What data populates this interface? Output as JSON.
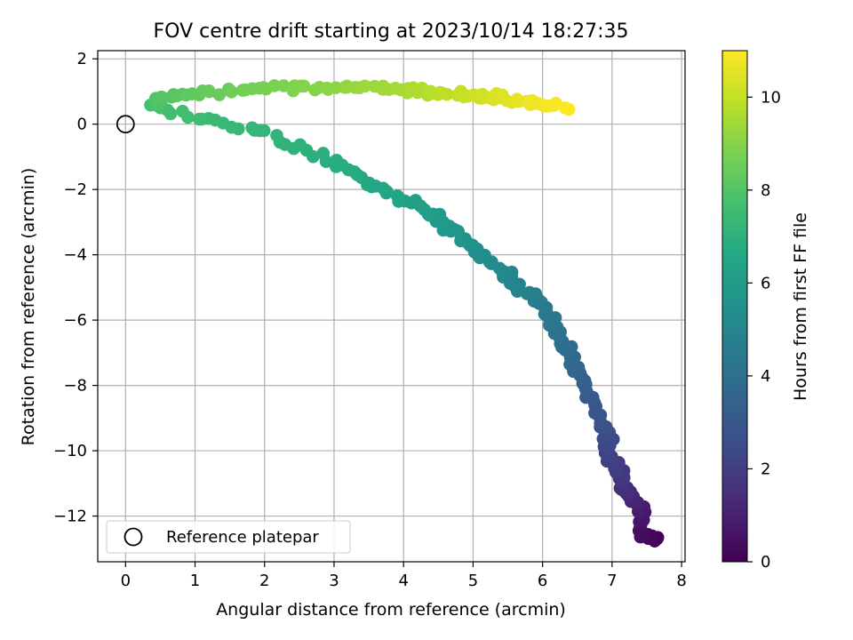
{
  "chart_data": {
    "type": "scatter",
    "title": "FOV centre drift starting at 2023/10/14 18:27:35",
    "xlabel": "Angular distance from reference (arcmin)",
    "ylabel": "Rotation from reference (arcmin)",
    "xlim": [
      -0.4,
      8.05
    ],
    "ylim": [
      -13.4,
      2.25
    ],
    "xticks": [
      0,
      1,
      2,
      3,
      4,
      5,
      6,
      7,
      8
    ],
    "yticks": [
      2,
      0,
      -2,
      -4,
      -6,
      -8,
      -10,
      -12
    ],
    "grid": true,
    "legend": {
      "placement": "lower-left",
      "entries": [
        "Reference platepar"
      ]
    },
    "colorbar": {
      "label": "Hours from first FF file",
      "range": [
        0,
        11
      ],
      "ticks": [
        0,
        2,
        4,
        6,
        8,
        10
      ],
      "colormap": "viridis"
    },
    "reference_point": {
      "x": 0,
      "y": 0
    },
    "series_path": [
      {
        "t": 0.0,
        "x": 7.65,
        "y": -12.78
      },
      {
        "t": 0.4,
        "x": 7.4,
        "y": -12.45
      },
      {
        "t": 0.8,
        "x": 7.45,
        "y": -11.8
      },
      {
        "t": 1.3,
        "x": 7.2,
        "y": -11.3
      },
      {
        "t": 1.8,
        "x": 7.1,
        "y": -10.7
      },
      {
        "t": 2.2,
        "x": 6.95,
        "y": -10.0
      },
      {
        "t": 2.6,
        "x": 6.9,
        "y": -9.4
      },
      {
        "t": 3.0,
        "x": 6.75,
        "y": -8.6
      },
      {
        "t": 3.4,
        "x": 6.55,
        "y": -7.8
      },
      {
        "t": 3.8,
        "x": 6.35,
        "y": -7.0
      },
      {
        "t": 4.2,
        "x": 6.2,
        "y": -6.2
      },
      {
        "t": 4.6,
        "x": 5.95,
        "y": -5.4
      },
      {
        "t": 5.0,
        "x": 5.5,
        "y": -4.7
      },
      {
        "t": 5.4,
        "x": 5.05,
        "y": -3.9
      },
      {
        "t": 5.8,
        "x": 4.7,
        "y": -3.2
      },
      {
        "t": 6.2,
        "x": 4.2,
        "y": -2.5
      },
      {
        "t": 6.6,
        "x": 3.5,
        "y": -1.8
      },
      {
        "t": 6.9,
        "x": 2.9,
        "y": -1.0
      },
      {
        "t": 7.2,
        "x": 2.0,
        "y": -0.3
      },
      {
        "t": 7.5,
        "x": 1.1,
        "y": 0.2
      },
      {
        "t": 7.7,
        "x": 0.4,
        "y": 0.5
      },
      {
        "t": 8.0,
        "x": 0.5,
        "y": 0.8
      },
      {
        "t": 8.4,
        "x": 1.2,
        "y": 1.0
      },
      {
        "t": 8.8,
        "x": 2.2,
        "y": 1.1
      },
      {
        "t": 9.2,
        "x": 3.2,
        "y": 1.15
      },
      {
        "t": 9.6,
        "x": 4.1,
        "y": 1.05
      },
      {
        "t": 10.0,
        "x": 4.8,
        "y": 0.9
      },
      {
        "t": 10.4,
        "x": 5.4,
        "y": 0.8
      },
      {
        "t": 10.8,
        "x": 6.0,
        "y": 0.6
      },
      {
        "t": 11.0,
        "x": 6.35,
        "y": 0.45
      }
    ],
    "series_points": 330,
    "colors": {
      "reference_marker": "#000000",
      "grid": "#b0b0b0",
      "legend_border": "#cccccc"
    }
  }
}
